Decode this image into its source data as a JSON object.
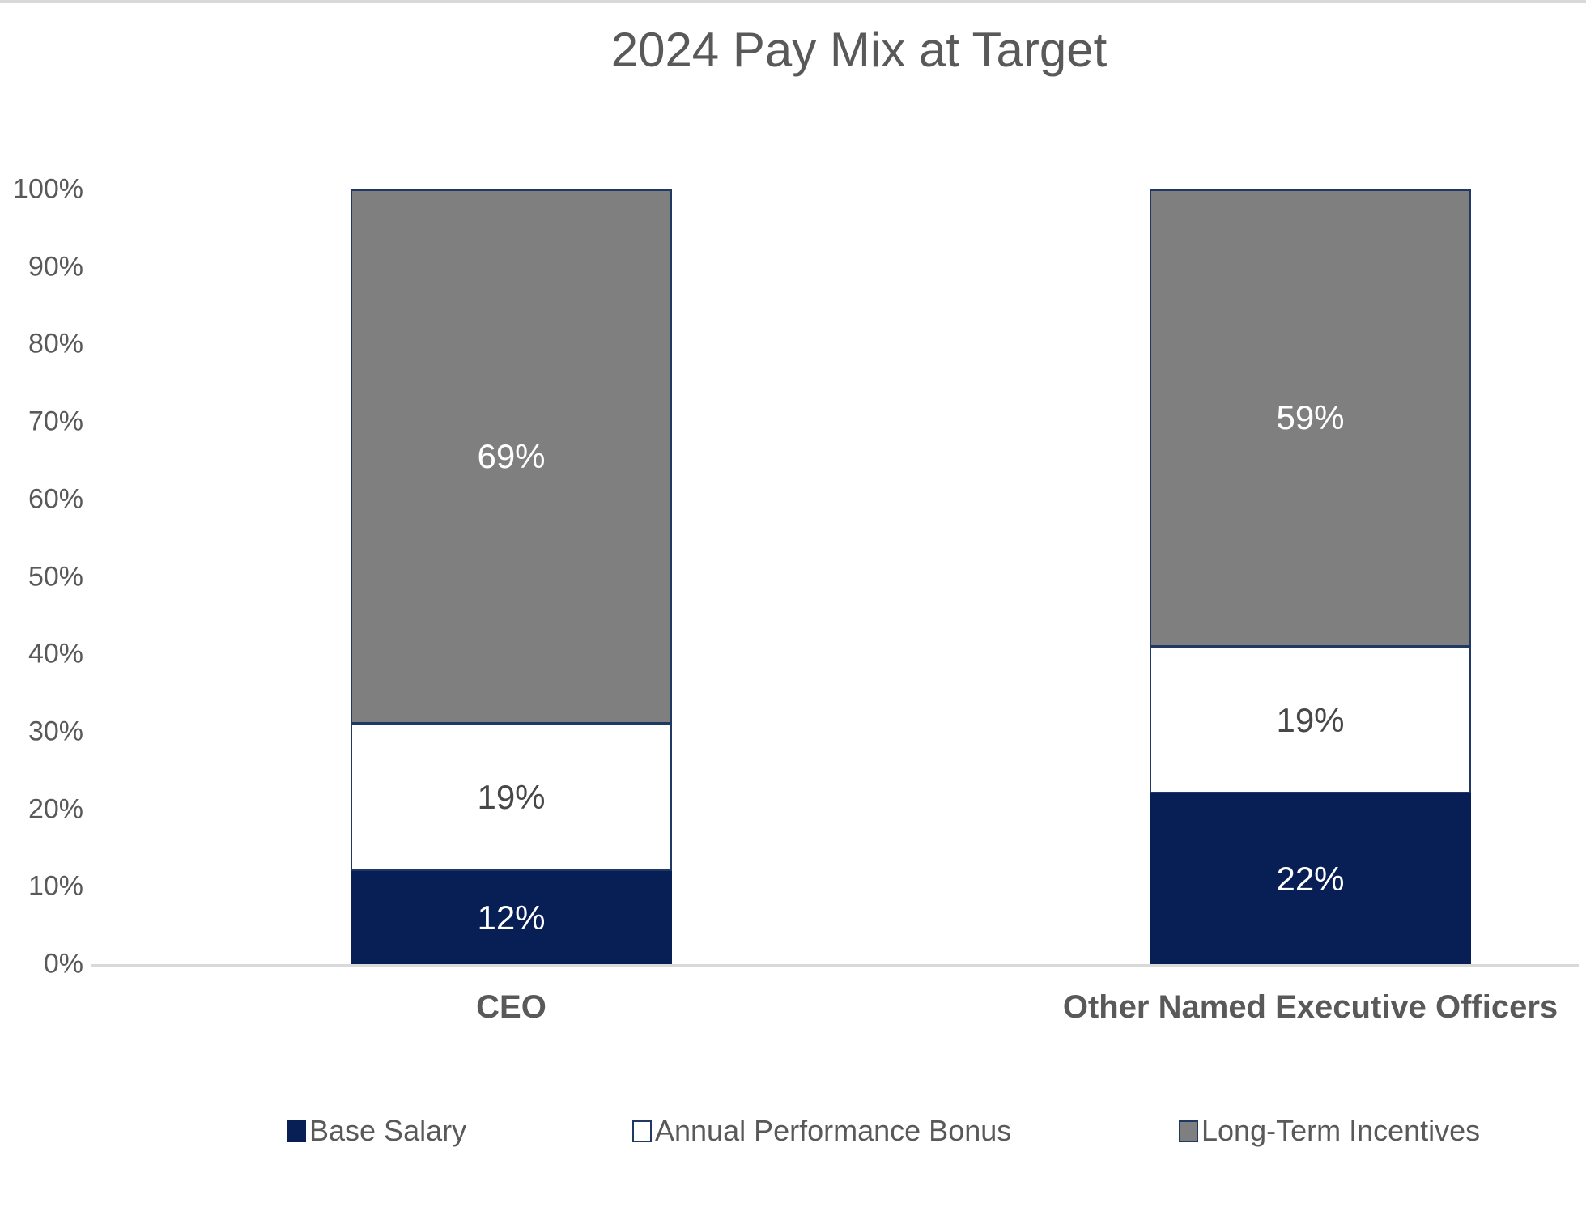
{
  "title": "2024 Pay Mix at Target",
  "colors": {
    "navy_fill": "#081f56",
    "segment_border": "#1f3864",
    "gray_fill": "#7f7f7f",
    "white_fill": "#ffffff",
    "axis_line": "#d9d9d9",
    "text_gray": "#595959",
    "label_on_white": "#474747",
    "label_on_dark": "#ffffff"
  },
  "chart_data": {
    "type": "bar",
    "stacked": true,
    "title": "2024 Pay Mix at Target",
    "categories": [
      "CEO",
      "Other Named Executive Officers"
    ],
    "series": [
      {
        "name": "Base Salary",
        "values": [
          12,
          22
        ],
        "fill": "#081f56",
        "label_color": "#ffffff"
      },
      {
        "name": "Annual Performance Bonus",
        "values": [
          19,
          19
        ],
        "fill": "#ffffff",
        "label_color": "#474747"
      },
      {
        "name": "Long-Term Incentives",
        "values": [
          69,
          59
        ],
        "fill": "#7f7f7f",
        "label_color": "#ffffff"
      }
    ],
    "value_suffix": "%",
    "ylim": [
      0,
      100
    ],
    "y_ticks": [
      "0%",
      "10%",
      "20%",
      "30%",
      "40%",
      "50%",
      "60%",
      "70%",
      "80%",
      "90%",
      "100%"
    ],
    "grid": false,
    "legend_position": "bottom",
    "axis": {
      "bottom_line": true
    }
  }
}
